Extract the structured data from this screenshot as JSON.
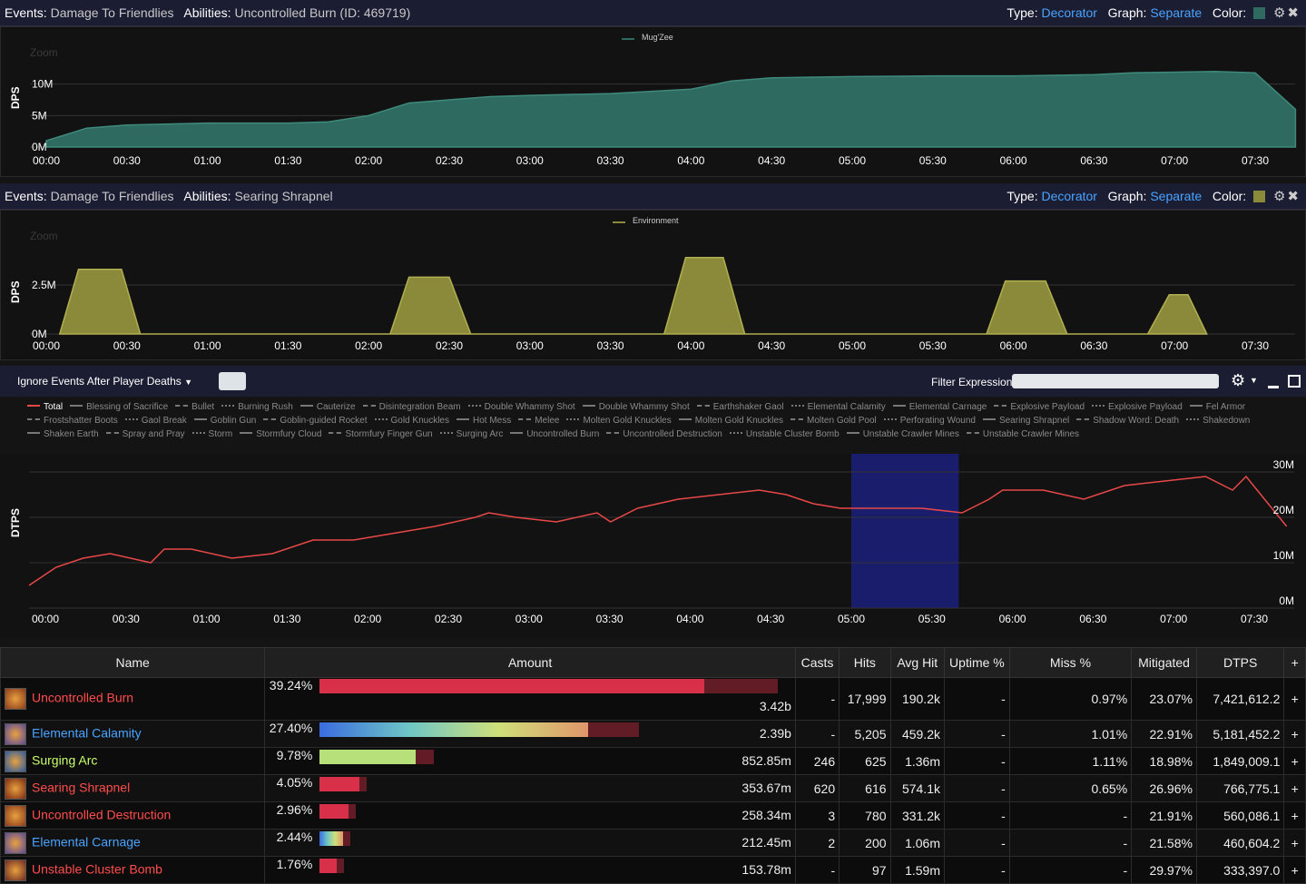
{
  "panel1": {
    "events_label": "Events:",
    "events_value": "Damage To Friendlies",
    "abilities_label": "Abilities:",
    "abilities_value": "Uncontrolled Burn (ID: 469719)",
    "type_label": "Type:",
    "type_value": "Decorator",
    "graph_label": "Graph:",
    "graph_value": "Separate",
    "color_label": "Color:",
    "color": "#2e6a5f",
    "zoom": "Zoom",
    "ylabel": "DPS",
    "legend": "Mug'Zee"
  },
  "panel2": {
    "events_label": "Events:",
    "events_value": "Damage To Friendlies",
    "abilities_label": "Abilities:",
    "abilities_value": "Searing Shrapnel",
    "type_label": "Type:",
    "type_value": "Decorator",
    "graph_label": "Graph:",
    "graph_value": "Separate",
    "color_label": "Color:",
    "color": "#8a8a3a",
    "zoom": "Zoom",
    "ylabel": "DPS",
    "legend": "Environment"
  },
  "panel3": {
    "ignore_label": "Ignore Events After Player Deaths",
    "filter_label": "Filter Expression:",
    "ylabel": "DTPS",
    "legend": [
      "Total",
      "Blessing of Sacrifice",
      "Bullet",
      "Burning Rush",
      "Cauterize",
      "Disintegration Beam",
      "Double Whammy Shot",
      "Double Whammy Shot",
      "Earthshaker Gaol",
      "Elemental Calamity",
      "Elemental Carnage",
      "Explosive Payload",
      "Explosive Payload",
      "Fel Armor",
      "Frostshatter Boots",
      "Gaol Break",
      "Goblin Gun",
      "Goblin-guided Rocket",
      "Gold Knuckles",
      "Hot Mess",
      "Melee",
      "Molten Gold Knuckles",
      "Molten Gold Knuckles",
      "Molten Gold Pool",
      "Perforating Wound",
      "Searing Shrapnel",
      "Shadow Word: Death",
      "Shakedown",
      "Shaken Earth",
      "Spray and Pray",
      "Storm",
      "Stormfury Cloud",
      "Stormfury Finger Gun",
      "Surging Arc",
      "Uncontrolled Burn",
      "Uncontrolled Destruction",
      "Unstable Cluster Bomb",
      "Unstable Crawler Mines",
      "Unstable Crawler Mines"
    ]
  },
  "time_ticks": [
    "00:00",
    "00:30",
    "01:00",
    "01:30",
    "02:00",
    "02:30",
    "03:00",
    "03:30",
    "04:00",
    "04:30",
    "05:00",
    "05:30",
    "06:00",
    "06:30",
    "07:00",
    "07:30"
  ],
  "chart_data": [
    {
      "type": "area",
      "title": "",
      "ylabel": "DPS",
      "y_ticks": [
        "0M",
        "5M",
        "10M"
      ],
      "ylim": [
        0,
        15000000
      ],
      "legend": "top-center",
      "series": [
        {
          "name": "Mug'Zee",
          "color": "#2e6a5f",
          "x_seconds": [
            0,
            15,
            30,
            60,
            90,
            105,
            120,
            135,
            150,
            165,
            180,
            210,
            240,
            255,
            270,
            300,
            330,
            360,
            390,
            405,
            420,
            435,
            450,
            465
          ],
          "values": [
            1000000,
            3000000,
            3500000,
            3800000,
            3800000,
            4000000,
            5000000,
            7000000,
            7500000,
            8000000,
            8200000,
            8500000,
            9200000,
            10500000,
            11000000,
            11200000,
            11300000,
            11300000,
            11500000,
            11800000,
            11900000,
            12000000,
            11800000,
            6000000
          ]
        }
      ]
    },
    {
      "type": "area",
      "title": "",
      "ylabel": "DPS",
      "y_ticks": [
        "0M",
        "2.5M"
      ],
      "ylim": [
        0,
        5000000
      ],
      "legend": "top-center",
      "series": [
        {
          "name": "Environment",
          "color": "#8a8a3a",
          "x_seconds": [
            5,
            12,
            20,
            28,
            35,
            128,
            135,
            142,
            150,
            158,
            230,
            238,
            245,
            252,
            260,
            350,
            357,
            365,
            372,
            380,
            410,
            418,
            425,
            432
          ],
          "values": [
            0,
            3300000,
            3300000,
            3300000,
            0,
            0,
            2900000,
            2900000,
            2900000,
            0,
            0,
            3900000,
            3900000,
            3900000,
            0,
            0,
            2700000,
            2700000,
            2700000,
            0,
            0,
            2000000,
            2000000,
            0
          ]
        }
      ]
    },
    {
      "type": "line",
      "title": "",
      "ylabel": "DTPS",
      "y_ticks": [
        "0M",
        "10M",
        "20M",
        "30M"
      ],
      "ylim": [
        0,
        32000000
      ],
      "legend": "top",
      "highlight_range_seconds": [
        300,
        340
      ],
      "series": [
        {
          "name": "Total",
          "color": "#e84848",
          "x_seconds": [
            0,
            10,
            20,
            30,
            45,
            50,
            60,
            75,
            90,
            105,
            120,
            130,
            150,
            165,
            170,
            180,
            195,
            210,
            215,
            225,
            240,
            255,
            270,
            280,
            290,
            300,
            315,
            330,
            345,
            355,
            360,
            375,
            390,
            405,
            420,
            435,
            445,
            450,
            465
          ],
          "values": [
            5000000,
            9000000,
            11000000,
            12000000,
            10000000,
            13000000,
            13000000,
            11000000,
            12000000,
            15000000,
            15000000,
            16000000,
            18000000,
            20000000,
            21000000,
            20000000,
            19000000,
            21000000,
            19000000,
            22000000,
            24000000,
            25000000,
            26000000,
            25000000,
            23000000,
            22000000,
            22000000,
            22000000,
            21000000,
            24000000,
            26000000,
            26000000,
            24000000,
            27000000,
            28000000,
            29000000,
            26000000,
            29000000,
            18000000
          ]
        }
      ]
    }
  ],
  "table": {
    "headers": [
      "Name",
      "Amount",
      "Casts",
      "Hits",
      "Avg Hit",
      "Uptime %",
      "Miss %",
      "Mitigated",
      "DTPS",
      "+"
    ],
    "rows": [
      {
        "name": "Uncontrolled Burn",
        "name_color": "#ff4c4c",
        "icon": "fire-icon",
        "icon_color": "#8a3a1a",
        "percent": "39.24%",
        "percent_value": 39.24,
        "bar_color": "#d9304a",
        "amount": "3.42b",
        "casts": "-",
        "hits": "17,999",
        "avg_hit": "190.2k",
        "uptime": "-",
        "miss": "0.97%",
        "mitigated": "23.07%",
        "dtps": "7,421,612.2",
        "plus": "+"
      },
      {
        "name": "Elemental Calamity",
        "name_color": "#4aa3ff",
        "icon": "storm-icon",
        "icon_color": "#5a4a9a",
        "percent": "27.40%",
        "percent_value": 27.4,
        "bar_color": "rainbow",
        "amount": "2.39b",
        "casts": "-",
        "hits": "5,205",
        "avg_hit": "459.2k",
        "uptime": "-",
        "miss": "1.01%",
        "mitigated": "22.91%",
        "dtps": "5,181,452.2",
        "plus": "+"
      },
      {
        "name": "Surging Arc",
        "name_color": "#c8ff6a",
        "icon": "arc-icon",
        "icon_color": "#2a5aa0",
        "percent": "9.78%",
        "percent_value": 9.78,
        "bar_color": "#b7e07a",
        "amount": "852.85m",
        "casts": "246",
        "hits": "625",
        "avg_hit": "1.36m",
        "uptime": "-",
        "miss": "1.11%",
        "mitigated": "18.98%",
        "dtps": "1,849,009.1",
        "plus": "+"
      },
      {
        "name": "Searing Shrapnel",
        "name_color": "#ff4c4c",
        "icon": "shrapnel-icon",
        "icon_color": "#7a2a10",
        "percent": "4.05%",
        "percent_value": 4.05,
        "bar_color": "#d9304a",
        "amount": "353.67m",
        "casts": "620",
        "hits": "616",
        "avg_hit": "574.1k",
        "uptime": "-",
        "miss": "0.65%",
        "mitigated": "26.96%",
        "dtps": "766,775.1",
        "plus": "+"
      },
      {
        "name": "Uncontrolled Destruction",
        "name_color": "#ff4c4c",
        "icon": "fire-icon",
        "icon_color": "#8a3a1a",
        "percent": "2.96%",
        "percent_value": 2.96,
        "bar_color": "#d9304a",
        "amount": "258.34m",
        "casts": "3",
        "hits": "780",
        "avg_hit": "331.2k",
        "uptime": "-",
        "miss": "-",
        "mitigated": "21.91%",
        "dtps": "560,086.1",
        "plus": "+"
      },
      {
        "name": "Elemental Carnage",
        "name_color": "#4aa3ff",
        "icon": "storm-icon",
        "icon_color": "#5a4a9a",
        "percent": "2.44%",
        "percent_value": 2.44,
        "bar_color": "rainbow",
        "amount": "212.45m",
        "casts": "2",
        "hits": "200",
        "avg_hit": "1.06m",
        "uptime": "-",
        "miss": "-",
        "mitigated": "21.58%",
        "dtps": "460,604.2",
        "plus": "+"
      },
      {
        "name": "Unstable Cluster Bomb",
        "name_color": "#ff4c4c",
        "icon": "bomb-icon",
        "icon_color": "#6a2a20",
        "percent": "1.76%",
        "percent_value": 1.76,
        "bar_color": "#d9304a",
        "amount": "153.78m",
        "casts": "-",
        "hits": "97",
        "avg_hit": "1.59m",
        "uptime": "-",
        "miss": "-",
        "mitigated": "29.97%",
        "dtps": "333,397.0",
        "plus": "+"
      }
    ]
  }
}
